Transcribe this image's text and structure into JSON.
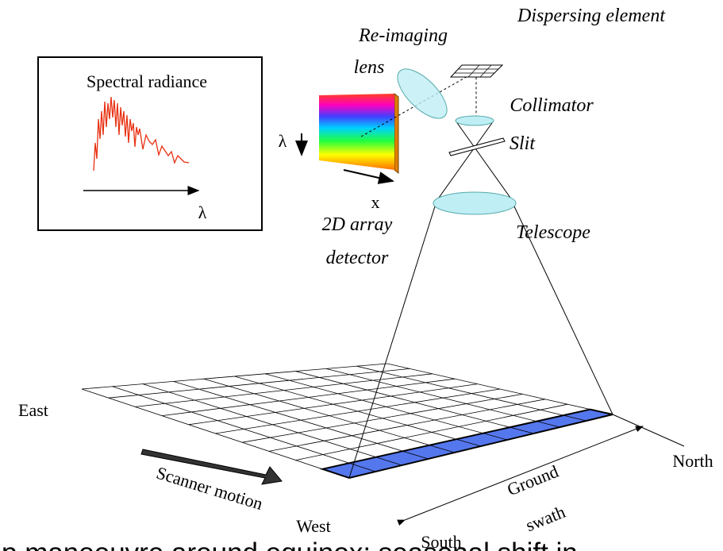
{
  "inset": {
    "title": "Spectral radiance",
    "x_axis": "λ"
  },
  "detector": {
    "lambda": "λ",
    "x": "x",
    "label_line1": "2D array",
    "label_line2": "detector"
  },
  "optics": {
    "dispersing_element": "Dispersing element",
    "reimaging_line1": "Re-imaging",
    "reimaging_line2": "lens",
    "collimator": "Collimator",
    "slit": "Slit",
    "telescope": "Telescope"
  },
  "ground": {
    "east": "East",
    "north": "North",
    "west": "West",
    "south": "South",
    "scanner_motion": "Scanner motion",
    "swath_line1": "Ground",
    "swath_line2": "swath"
  },
  "caption": "p manoeuvre around equinox; seasonal shift in"
}
